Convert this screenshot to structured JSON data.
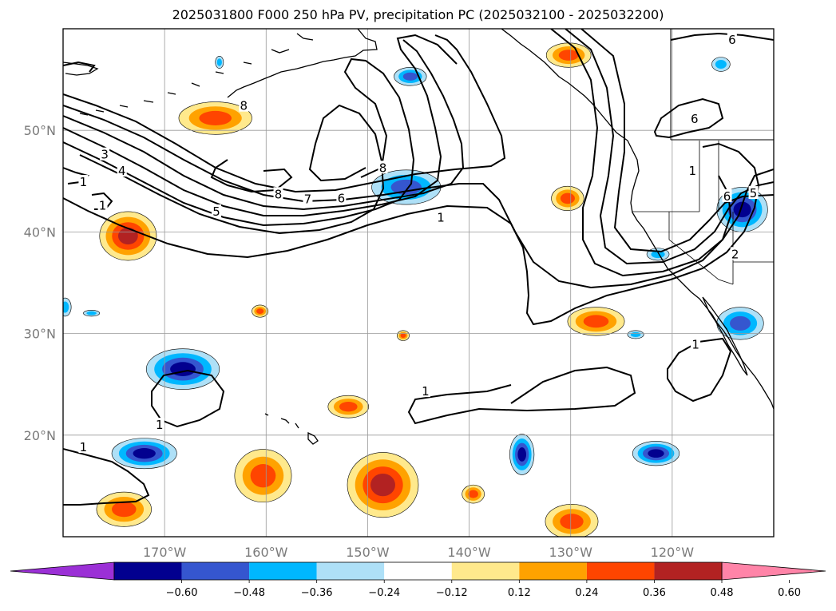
{
  "title": "2025031800 F000 250 hPa PV, precipitation PC (2025032100 - 2025032200)",
  "map": {
    "lon_range": [
      -180,
      -110
    ],
    "lat_range": [
      10,
      60
    ],
    "lon_ticks": [
      {
        "value": -170,
        "label": "170°W"
      },
      {
        "value": -160,
        "label": "160°W"
      },
      {
        "value": -150,
        "label": "150°W"
      },
      {
        "value": -140,
        "label": "140°W"
      },
      {
        "value": -130,
        "label": "130°W"
      },
      {
        "value": -120,
        "label": "120°W"
      }
    ],
    "lat_ticks": [
      {
        "value": 20,
        "label": "20°N"
      },
      {
        "value": 30,
        "label": "30°N"
      },
      {
        "value": 40,
        "label": "40°N"
      },
      {
        "value": 50,
        "label": "50°N"
      }
    ],
    "grid": true,
    "contour_variable": "250 hPa PV",
    "contour_labels": [
      {
        "text": "8",
        "lon": -162.2,
        "lat": 52.4
      },
      {
        "text": "3",
        "lon": -175.9,
        "lat": 47.6
      },
      {
        "text": "4",
        "lon": -174.2,
        "lat": 46.0
      },
      {
        "text": "1",
        "lon": -178.0,
        "lat": 44.9
      },
      {
        "text": "1",
        "lon": -176.1,
        "lat": 42.6
      },
      {
        "text": "5",
        "lon": -164.9,
        "lat": 42.0
      },
      {
        "text": "8",
        "lon": -158.8,
        "lat": 43.7
      },
      {
        "text": "7",
        "lon": -155.9,
        "lat": 43.2
      },
      {
        "text": "6",
        "lon": -152.6,
        "lat": 43.3
      },
      {
        "text": "8",
        "lon": -148.5,
        "lat": 46.3
      },
      {
        "text": "1",
        "lon": -142.8,
        "lat": 41.4
      },
      {
        "text": "6",
        "lon": -114.1,
        "lat": 58.9
      },
      {
        "text": "6",
        "lon": -117.8,
        "lat": 51.1
      },
      {
        "text": "1",
        "lon": -118.0,
        "lat": 46.0
      },
      {
        "text": "6",
        "lon": -114.6,
        "lat": 43.5
      },
      {
        "text": "5",
        "lon": -112.0,
        "lat": 43.8
      },
      {
        "text": "2",
        "lon": -113.8,
        "lat": 37.8
      },
      {
        "text": "1",
        "lon": -117.7,
        "lat": 28.9
      },
      {
        "text": "1",
        "lon": -144.3,
        "lat": 24.3
      },
      {
        "text": "1",
        "lon": -170.5,
        "lat": 21.0
      },
      {
        "text": "1",
        "lon": -178.0,
        "lat": 18.8
      }
    ],
    "shading_variable": "precipitation PC",
    "precip_blobs": [
      {
        "lon": -173.6,
        "lat": 39.6,
        "rx": 2.8,
        "ry": 2.4,
        "v": 0.5
      },
      {
        "lon": -165.0,
        "lat": 51.2,
        "rx": 3.6,
        "ry": 1.6,
        "v": 0.4
      },
      {
        "lon": -130.2,
        "lat": 57.4,
        "rx": 2.2,
        "ry": 1.2,
        "v": 0.38
      },
      {
        "lon": -130.3,
        "lat": 43.3,
        "rx": 1.6,
        "ry": 1.2,
        "v": 0.4
      },
      {
        "lon": -127.5,
        "lat": 31.2,
        "rx": 2.8,
        "ry": 1.4,
        "v": 0.4
      },
      {
        "lon": -160.3,
        "lat": 16.0,
        "rx": 2.8,
        "ry": 2.6,
        "v": 0.45
      },
      {
        "lon": -148.5,
        "lat": 15.1,
        "rx": 3.5,
        "ry": 3.2,
        "v": 0.5
      },
      {
        "lon": -151.9,
        "lat": 22.8,
        "rx": 2.0,
        "ry": 1.1,
        "v": 0.38
      },
      {
        "lon": -129.9,
        "lat": 11.5,
        "rx": 2.6,
        "ry": 1.7,
        "v": 0.4
      },
      {
        "lon": -174.0,
        "lat": 12.7,
        "rx": 2.7,
        "ry": 1.7,
        "v": 0.45
      },
      {
        "lon": -139.6,
        "lat": 14.2,
        "rx": 1.1,
        "ry": 0.9,
        "v": 0.36
      },
      {
        "lon": -160.6,
        "lat": 32.2,
        "rx": 0.8,
        "ry": 0.6,
        "v": 0.38
      },
      {
        "lon": -146.5,
        "lat": 29.8,
        "rx": 0.6,
        "ry": 0.5,
        "v": 0.38
      },
      {
        "lon": -168.2,
        "lat": 26.5,
        "rx": 3.6,
        "ry": 2.0,
        "v": -0.5
      },
      {
        "lon": -172.0,
        "lat": 18.2,
        "rx": 3.2,
        "ry": 1.5,
        "v": -0.5
      },
      {
        "lon": -146.2,
        "lat": 44.4,
        "rx": 3.4,
        "ry": 1.7,
        "v": -0.45
      },
      {
        "lon": -145.8,
        "lat": 55.3,
        "rx": 1.6,
        "ry": 0.9,
        "v": -0.36
      },
      {
        "lon": -134.8,
        "lat": 18.1,
        "rx": 1.2,
        "ry": 2.0,
        "v": -0.5
      },
      {
        "lon": -121.6,
        "lat": 18.2,
        "rx": 2.3,
        "ry": 1.2,
        "v": -0.48
      },
      {
        "lon": -113.1,
        "lat": 42.2,
        "rx": 2.5,
        "ry": 2.2,
        "v": -0.5
      },
      {
        "lon": -113.3,
        "lat": 31.0,
        "rx": 2.3,
        "ry": 1.6,
        "v": -0.36
      },
      {
        "lon": -115.2,
        "lat": 56.5,
        "rx": 0.9,
        "ry": 0.7,
        "v": -0.3
      },
      {
        "lon": -121.4,
        "lat": 37.8,
        "rx": 1.1,
        "ry": 0.6,
        "v": -0.3
      },
      {
        "lon": -123.6,
        "lat": 29.9,
        "rx": 0.8,
        "ry": 0.4,
        "v": -0.24
      },
      {
        "lon": -179.8,
        "lat": 32.6,
        "rx": 0.6,
        "ry": 0.9,
        "v": -0.3
      },
      {
        "lon": -177.2,
        "lat": 32.0,
        "rx": 0.8,
        "ry": 0.3,
        "v": -0.24
      },
      {
        "lon": -164.6,
        "lat": 56.7,
        "rx": 0.4,
        "ry": 0.6,
        "v": -0.3
      }
    ]
  },
  "colorbar": {
    "boundaries": [
      -0.72,
      -0.6,
      -0.48,
      -0.36,
      -0.24,
      -0.12,
      0.12,
      0.24,
      0.36,
      0.48,
      0.6,
      0.72
    ],
    "tick_labels": [
      "−0.60",
      "−0.48",
      "−0.36",
      "−0.24",
      "−0.12",
      "0.12",
      "0.24",
      "0.36",
      "0.48",
      "0.60"
    ],
    "tick_values": [
      -0.6,
      -0.48,
      -0.36,
      -0.24,
      -0.12,
      0.12,
      0.24,
      0.36,
      0.48,
      0.6
    ],
    "colors": [
      "#9b30d6",
      "#02008f",
      "#3556cf",
      "#00b7ff",
      "#aee0f7",
      "#ffffff",
      "#ffe98c",
      "#ffa200",
      "#ff4500",
      "#b22222",
      "#ff84a8"
    ],
    "extend": "both"
  }
}
